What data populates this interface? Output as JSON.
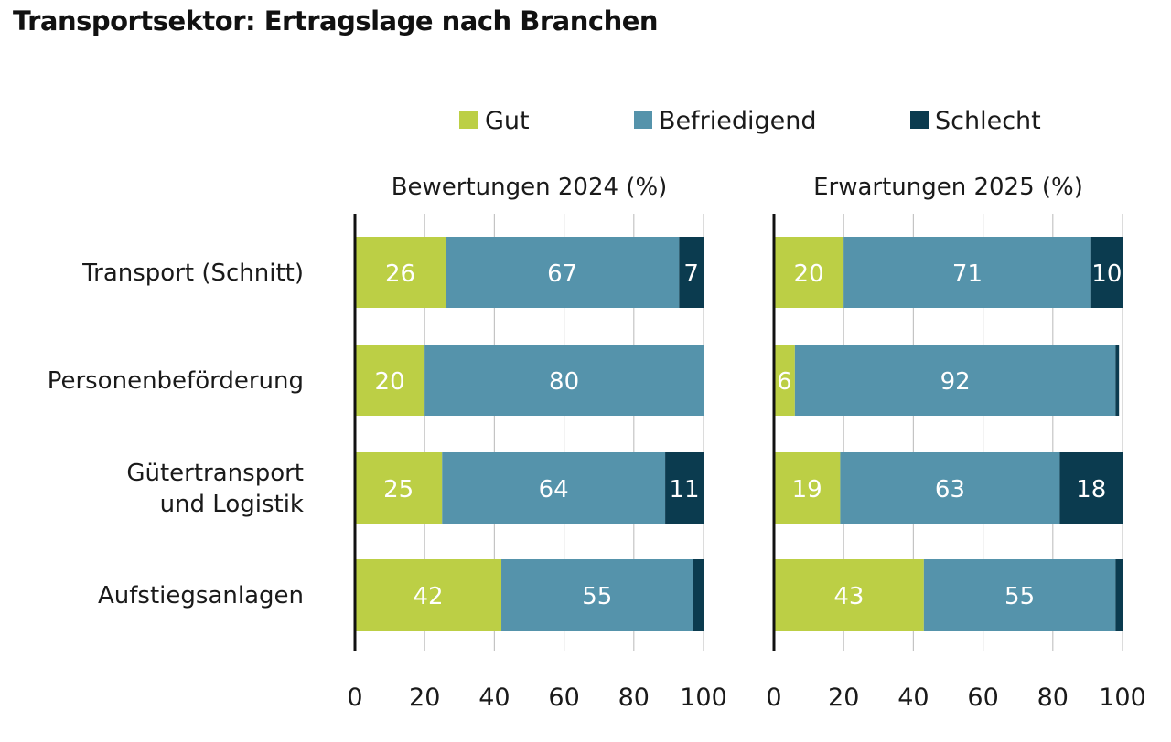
{
  "title": "Transportsektor: Ertragslage nach Branchen",
  "chart_data": {
    "type": "bar",
    "orientation": "horizontal",
    "stacked": true,
    "legend": [
      {
        "name": "Gut",
        "color": "#bccf45"
      },
      {
        "name": "Befriedigend",
        "color": "#5593ab"
      },
      {
        "name": "Schlecht",
        "color": "#0b3b4f"
      }
    ],
    "legend_position": "top",
    "categories": [
      "Transport (Schnitt)",
      "Personenbeförderung",
      "Gütertransport\nund Logistik",
      "Aufstiegsanlagen"
    ],
    "xlim": [
      0,
      100
    ],
    "xticks": [
      "0",
      "20",
      "40",
      "60",
      "80",
      "100"
    ],
    "grid": true,
    "panels": [
      {
        "title": "Bewertungen 2024 (%)",
        "series": [
          {
            "name": "Gut",
            "values": [
              26,
              20,
              25,
              42
            ]
          },
          {
            "name": "Befriedigend",
            "values": [
              67,
              80,
              64,
              55
            ]
          },
          {
            "name": "Schlecht",
            "values": [
              7,
              0,
              11,
              3
            ]
          }
        ],
        "labels": [
          [
            "26",
            "67",
            "7"
          ],
          [
            "20",
            "80",
            ""
          ],
          [
            "25",
            "64",
            "11"
          ],
          [
            "42",
            "55",
            ""
          ]
        ]
      },
      {
        "title": "Erwartungen 2025 (%)",
        "series": [
          {
            "name": "Gut",
            "values": [
              20,
              6,
              19,
              43
            ]
          },
          {
            "name": "Befriedigend",
            "values": [
              71,
              92,
              63,
              55
            ]
          },
          {
            "name": "Schlecht",
            "values": [
              10,
              1,
              18,
              2
            ]
          }
        ],
        "labels": [
          [
            "20",
            "71",
            "10"
          ],
          [
            "6",
            "92",
            ""
          ],
          [
            "19",
            "63",
            "18"
          ],
          [
            "43",
            "55",
            ""
          ]
        ]
      }
    ]
  }
}
